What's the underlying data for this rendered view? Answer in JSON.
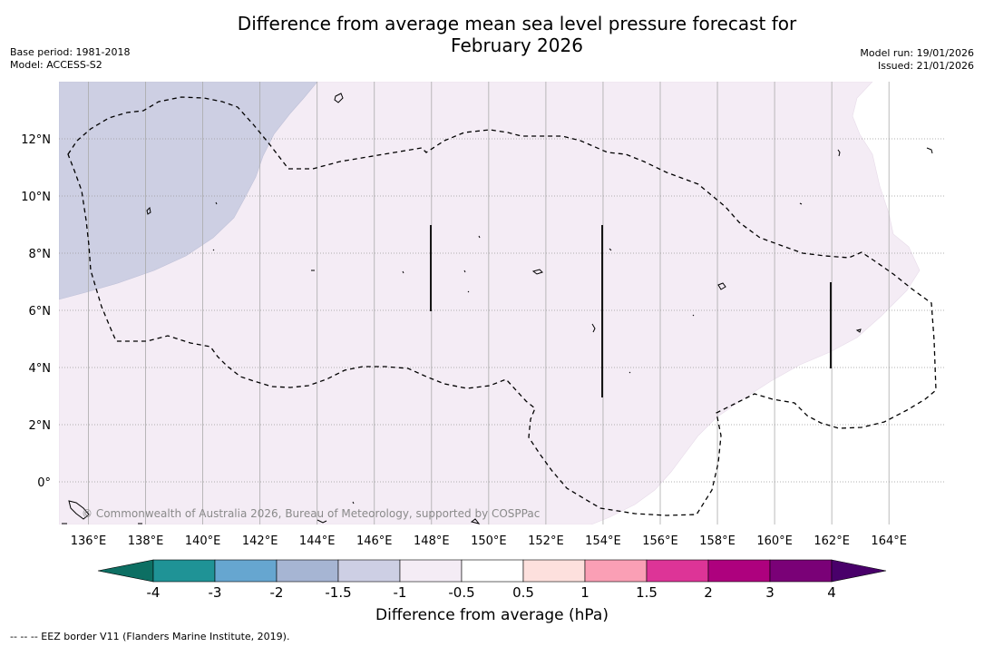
{
  "title": {
    "line1": "Difference from average mean sea level pressure forecast for",
    "line2": "February 2026"
  },
  "meta_left": {
    "base_period": "Base period: 1981-2018",
    "model": "Model: ACCESS-S2"
  },
  "meta_right": {
    "model_run": "Model run: 19/01/2026",
    "issued": "Issued: 21/01/2026"
  },
  "map": {
    "lat_labels": [
      "12°N",
      "10°N",
      "8°N",
      "6°N",
      "4°N",
      "2°N",
      "0°"
    ],
    "lon_labels": [
      "136°E",
      "138°E",
      "140°E",
      "142°E",
      "144°E",
      "146°E",
      "148°E",
      "150°E",
      "152°E",
      "154°E",
      "156°E",
      "158°E",
      "160°E",
      "162°E",
      "164°E"
    ],
    "copyright": "© Commonwealth of Australia 2026, Bureau of Meteorology, supported by COSPPac",
    "fill_colors": {
      "band_neg1_5_to_neg1": "#cdcfe3",
      "band_neg1_to_neg0_5": "#f4ecf5",
      "band_neg0_5_to_0_5": "#ffffff"
    }
  },
  "colorbar": {
    "title": "Difference from average (hPa)",
    "tick_labels": [
      "-4",
      "-3",
      "-2",
      "-1.5",
      "-1",
      "-0.5",
      "0.5",
      "1",
      "1.5",
      "2",
      "3",
      "4"
    ],
    "colors": [
      "#0d6f63",
      "#1f9396",
      "#66a6d0",
      "#a6b5d3",
      "#cdcfe4",
      "#f4ecf5",
      "#ffffff",
      "#fde0dd",
      "#fa9fb5",
      "#dd3497",
      "#ae017e",
      "#7a0177",
      "#49006a"
    ]
  },
  "footnote": "--  --  -- EEZ border V11 (Flanders Marine Institute, 2019)."
}
